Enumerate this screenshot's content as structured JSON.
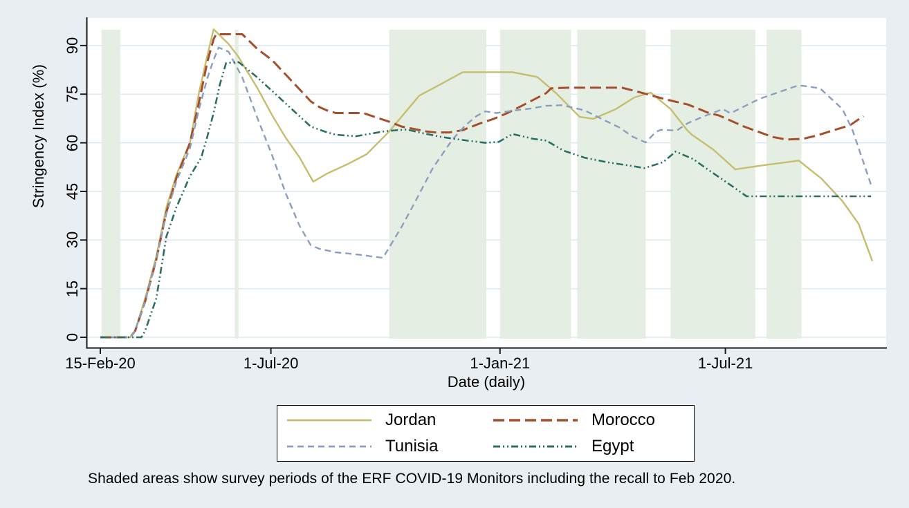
{
  "caption": "Shaded areas show survey periods of the ERF COVID-19 Monitors including the recall to Feb 2020.",
  "colors": {
    "background": "#e9eef2",
    "plot_background": "#ffffff",
    "survey_band": "#e4eee3",
    "gridline": "#dce8f2",
    "axis": "#1a1a1a",
    "jordan": "#c6bd6e",
    "morocco": "#a44e2c",
    "tunisia": "#8c9ebf",
    "egypt": "#2b6e66"
  },
  "chart_data": {
    "type": "line",
    "title": "",
    "xlabel": "Date (daily)",
    "ylabel": "Stringency Index (%)",
    "ylim": [
      0,
      100
    ],
    "grid": "horizontal",
    "legend_position": "bottom",
    "y_ticks": [
      0,
      15,
      30,
      45,
      60,
      75,
      90
    ],
    "x_ticks": [
      {
        "date": "2020-02-15",
        "label": "15-Feb-20"
      },
      {
        "date": "2020-07-01",
        "label": "1-Jul-20"
      },
      {
        "date": "2021-01-01",
        "label": "1-Jan-21"
      },
      {
        "date": "2021-07-01",
        "label": "1-Jul-21"
      }
    ],
    "survey_bands": [
      {
        "start": "2020-02-16",
        "end": "2020-03-02"
      },
      {
        "start": "2020-06-02",
        "end": "2020-06-05"
      },
      {
        "start": "2020-10-04",
        "end": "2020-12-21"
      },
      {
        "start": "2021-01-01",
        "end": "2021-02-27"
      },
      {
        "start": "2021-03-04",
        "end": "2021-04-28"
      },
      {
        "start": "2021-05-18",
        "end": "2021-07-25"
      },
      {
        "start": "2021-08-03",
        "end": "2021-08-31"
      }
    ],
    "series": [
      {
        "name": "Jordan",
        "color_key": "jordan",
        "dash": "",
        "width": 2.4,
        "points": [
          [
            "2020-02-15",
            0
          ],
          [
            "2020-03-10",
            0
          ],
          [
            "2020-03-14",
            2
          ],
          [
            "2020-03-22",
            12
          ],
          [
            "2020-03-31",
            25
          ],
          [
            "2020-04-08",
            40
          ],
          [
            "2020-04-16",
            50
          ],
          [
            "2020-04-27",
            60
          ],
          [
            "2020-05-04",
            75
          ],
          [
            "2020-05-11",
            87
          ],
          [
            "2020-05-16",
            95
          ],
          [
            "2020-05-28",
            90.5
          ],
          [
            "2020-06-05",
            86.5
          ],
          [
            "2020-06-08",
            84.5
          ],
          [
            "2020-06-20",
            77
          ],
          [
            "2020-07-02",
            68.5
          ],
          [
            "2020-07-13",
            61.5
          ],
          [
            "2020-07-24",
            55.5
          ],
          [
            "2020-08-04",
            48
          ],
          [
            "2020-08-15",
            50.5
          ],
          [
            "2020-09-01",
            53.5
          ],
          [
            "2020-09-16",
            56.5
          ],
          [
            "2020-10-04",
            63.5
          ],
          [
            "2020-10-28",
            74.5
          ],
          [
            "2020-11-14",
            78
          ],
          [
            "2020-12-02",
            81.8
          ],
          [
            "2021-01-11",
            81.8
          ],
          [
            "2021-01-31",
            80.3
          ],
          [
            "2021-02-15",
            75.3
          ],
          [
            "2021-03-06",
            68
          ],
          [
            "2021-03-17",
            67.4
          ],
          [
            "2021-04-04",
            70.4
          ],
          [
            "2021-04-19",
            74
          ],
          [
            "2021-05-02",
            75.5
          ],
          [
            "2021-05-18",
            70.4
          ],
          [
            "2021-05-31",
            64
          ],
          [
            "2021-06-04",
            62.5
          ],
          [
            "2021-06-21",
            58
          ],
          [
            "2021-07-09",
            51.8
          ],
          [
            "2021-07-30",
            53
          ],
          [
            "2021-08-29",
            54.5
          ],
          [
            "2021-09-16",
            49
          ],
          [
            "2021-10-03",
            42
          ],
          [
            "2021-10-16",
            35
          ],
          [
            "2021-10-27",
            23.5
          ]
        ]
      },
      {
        "name": "Morocco",
        "color_key": "morocco",
        "dash": "16 7",
        "width": 3,
        "points": [
          [
            "2020-02-15",
            0
          ],
          [
            "2020-03-10",
            0
          ],
          [
            "2020-03-14",
            2
          ],
          [
            "2020-03-22",
            11
          ],
          [
            "2020-03-31",
            24
          ],
          [
            "2020-04-08",
            38.5
          ],
          [
            "2020-04-16",
            49
          ],
          [
            "2020-04-27",
            60
          ],
          [
            "2020-05-04",
            72
          ],
          [
            "2020-05-11",
            85
          ],
          [
            "2020-05-16",
            92
          ],
          [
            "2020-05-18",
            93.5
          ],
          [
            "2020-06-08",
            93.5
          ],
          [
            "2020-06-20",
            89
          ],
          [
            "2020-07-02",
            85.5
          ],
          [
            "2020-07-13",
            81
          ],
          [
            "2020-07-24",
            76.5
          ],
          [
            "2020-08-02",
            72.8
          ],
          [
            "2020-08-09",
            71
          ],
          [
            "2020-08-15",
            70
          ],
          [
            "2020-08-22",
            69.2
          ],
          [
            "2020-09-13",
            69.2
          ],
          [
            "2020-10-04",
            66.5
          ],
          [
            "2020-10-14",
            65
          ],
          [
            "2020-11-03",
            63.5
          ],
          [
            "2020-11-10",
            63.2
          ],
          [
            "2020-11-21",
            63.2
          ],
          [
            "2020-12-02",
            63.9
          ],
          [
            "2020-12-16",
            66
          ],
          [
            "2020-12-27",
            67.4
          ],
          [
            "2021-01-07",
            69.2
          ],
          [
            "2021-01-20",
            71.7
          ],
          [
            "2021-02-07",
            75.3
          ],
          [
            "2021-02-11",
            76.8
          ],
          [
            "2021-02-25",
            77
          ],
          [
            "2021-04-09",
            77
          ],
          [
            "2021-04-26",
            75.3
          ],
          [
            "2021-05-13",
            73.5
          ],
          [
            "2021-06-01",
            71.8
          ],
          [
            "2021-06-17",
            69.3
          ],
          [
            "2021-06-26",
            68.4
          ],
          [
            "2021-07-16",
            65
          ],
          [
            "2021-08-08",
            61.8
          ],
          [
            "2021-08-19",
            61
          ],
          [
            "2021-09-01",
            61.2
          ],
          [
            "2021-09-12",
            62.2
          ],
          [
            "2021-09-27",
            64
          ],
          [
            "2021-10-09",
            65.4
          ],
          [
            "2021-10-17",
            67.5
          ],
          [
            "2021-10-20",
            68.2
          ]
        ]
      },
      {
        "name": "Tunisia",
        "color_key": "tunisia",
        "dash": "9 6",
        "width": 2.4,
        "points": [
          [
            "2020-02-15",
            0
          ],
          [
            "2020-03-10",
            0
          ],
          [
            "2020-03-14",
            2
          ],
          [
            "2020-03-22",
            11
          ],
          [
            "2020-03-31",
            24
          ],
          [
            "2020-04-08",
            38
          ],
          [
            "2020-04-16",
            48
          ],
          [
            "2020-04-27",
            58.3
          ],
          [
            "2020-05-04",
            70
          ],
          [
            "2020-05-11",
            80
          ],
          [
            "2020-05-16",
            85.6
          ],
          [
            "2020-05-20",
            89.4
          ],
          [
            "2020-05-28",
            88.1
          ],
          [
            "2020-06-08",
            80.2
          ],
          [
            "2020-06-20",
            67.8
          ],
          [
            "2020-07-02",
            56.1
          ],
          [
            "2020-07-13",
            44.3
          ],
          [
            "2020-07-24",
            34.4
          ],
          [
            "2020-08-02",
            28.4
          ],
          [
            "2020-08-09",
            27.3
          ],
          [
            "2020-08-22",
            26.2
          ],
          [
            "2020-09-07",
            25.6
          ],
          [
            "2020-09-29",
            24.5
          ],
          [
            "2020-10-14",
            34.1
          ],
          [
            "2020-10-25",
            41.9
          ],
          [
            "2020-11-08",
            52.2
          ],
          [
            "2020-11-24",
            61.1
          ],
          [
            "2020-12-04",
            65.3
          ],
          [
            "2020-12-13",
            68.2
          ],
          [
            "2020-12-20",
            69.7
          ],
          [
            "2020-12-29",
            69.2
          ],
          [
            "2021-01-11",
            69.9
          ],
          [
            "2021-01-26",
            70.6
          ],
          [
            "2021-02-07",
            71.4
          ],
          [
            "2021-02-20",
            71.6
          ],
          [
            "2021-03-10",
            70
          ],
          [
            "2021-03-23",
            67.5
          ],
          [
            "2021-04-07",
            64.7
          ],
          [
            "2021-04-18",
            61.8
          ],
          [
            "2021-04-28",
            60.1
          ],
          [
            "2021-05-06",
            63.3
          ],
          [
            "2021-05-10",
            64
          ],
          [
            "2021-05-23",
            63.8
          ],
          [
            "2021-06-01",
            66.1
          ],
          [
            "2021-06-14",
            68.2
          ],
          [
            "2021-06-29",
            70.4
          ],
          [
            "2021-07-05",
            69.1
          ],
          [
            "2021-07-28",
            73.5
          ],
          [
            "2021-08-27",
            77.5
          ],
          [
            "2021-09-01",
            77.6
          ],
          [
            "2021-09-15",
            76.8
          ],
          [
            "2021-10-03",
            70.4
          ],
          [
            "2021-10-11",
            64
          ],
          [
            "2021-10-26",
            47
          ]
        ]
      },
      {
        "name": "Egypt",
        "color_key": "egypt",
        "dash": "10 4 2 4 2 4",
        "width": 2.6,
        "points": [
          [
            "2020-02-15",
            0
          ],
          [
            "2020-03-19",
            0
          ],
          [
            "2020-03-22",
            2
          ],
          [
            "2020-03-31",
            12
          ],
          [
            "2020-04-08",
            31
          ],
          [
            "2020-04-16",
            40
          ],
          [
            "2020-04-27",
            49.7
          ],
          [
            "2020-05-06",
            55.4
          ],
          [
            "2020-05-11",
            62
          ],
          [
            "2020-05-16",
            69.2
          ],
          [
            "2020-05-21",
            78
          ],
          [
            "2020-05-26",
            84.6
          ],
          [
            "2020-06-05",
            84.9
          ],
          [
            "2020-06-20",
            80.2
          ],
          [
            "2020-07-02",
            76
          ],
          [
            "2020-07-13",
            72.1
          ],
          [
            "2020-08-02",
            65
          ],
          [
            "2020-08-13",
            63.5
          ],
          [
            "2020-08-22",
            62.5
          ],
          [
            "2020-09-07",
            62
          ],
          [
            "2020-10-01",
            63.6
          ],
          [
            "2020-10-18",
            64.1
          ],
          [
            "2020-11-02",
            62.8
          ],
          [
            "2020-11-15",
            61.8
          ],
          [
            "2020-11-27",
            61.1
          ],
          [
            "2020-12-20",
            60
          ],
          [
            "2020-12-31",
            60.3
          ],
          [
            "2021-01-11",
            62.7
          ],
          [
            "2021-01-28",
            61.2
          ],
          [
            "2021-02-07",
            60.7
          ],
          [
            "2021-02-21",
            57.6
          ],
          [
            "2021-03-10",
            55.4
          ],
          [
            "2021-03-28",
            54
          ],
          [
            "2021-04-16",
            52.9
          ],
          [
            "2021-04-27",
            52.2
          ],
          [
            "2021-05-12",
            54
          ],
          [
            "2021-05-22",
            57.3
          ],
          [
            "2021-06-05",
            55
          ],
          [
            "2021-06-16",
            52
          ],
          [
            "2021-07-05",
            47
          ],
          [
            "2021-07-18",
            43.5
          ],
          [
            "2021-10-26",
            43.5
          ]
        ]
      }
    ]
  }
}
